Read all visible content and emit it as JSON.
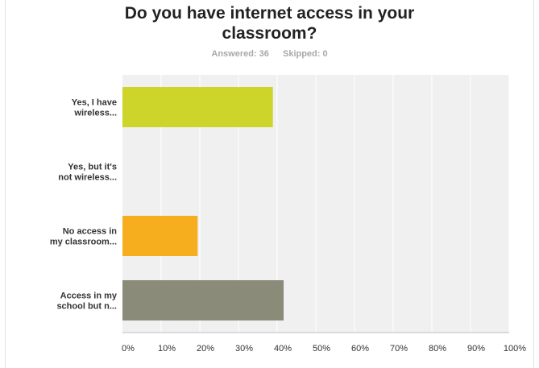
{
  "survey": {
    "title_line1": "Do you have internet access in your",
    "title_line2": "classroom?",
    "answered": "Answered: 36",
    "skipped": "Skipped: 0"
  },
  "chart_data": {
    "type": "bar",
    "orientation": "horizontal",
    "title": "Do you have internet access in your classroom?",
    "categories": [
      [
        "Yes, I have",
        "wireless..."
      ],
      [
        "Yes, but it's",
        "not wireless..."
      ],
      [
        "No access in",
        "my classroom..."
      ],
      [
        "Access in my",
        "school but n..."
      ]
    ],
    "values": [
      38.89,
      0,
      19.44,
      41.67
    ],
    "colors": [
      "#cdd42a",
      "#cdd42a",
      "#f6ae1f",
      "#8b8b7a"
    ],
    "xlim": [
      0,
      100
    ],
    "ticks": [
      "0%",
      "10%",
      "20%",
      "30%",
      "40%",
      "50%",
      "60%",
      "70%",
      "80%",
      "90%",
      "100%"
    ],
    "grid": true,
    "plot_background": "#f0f0f0",
    "gridline_color": "#ffffff"
  }
}
